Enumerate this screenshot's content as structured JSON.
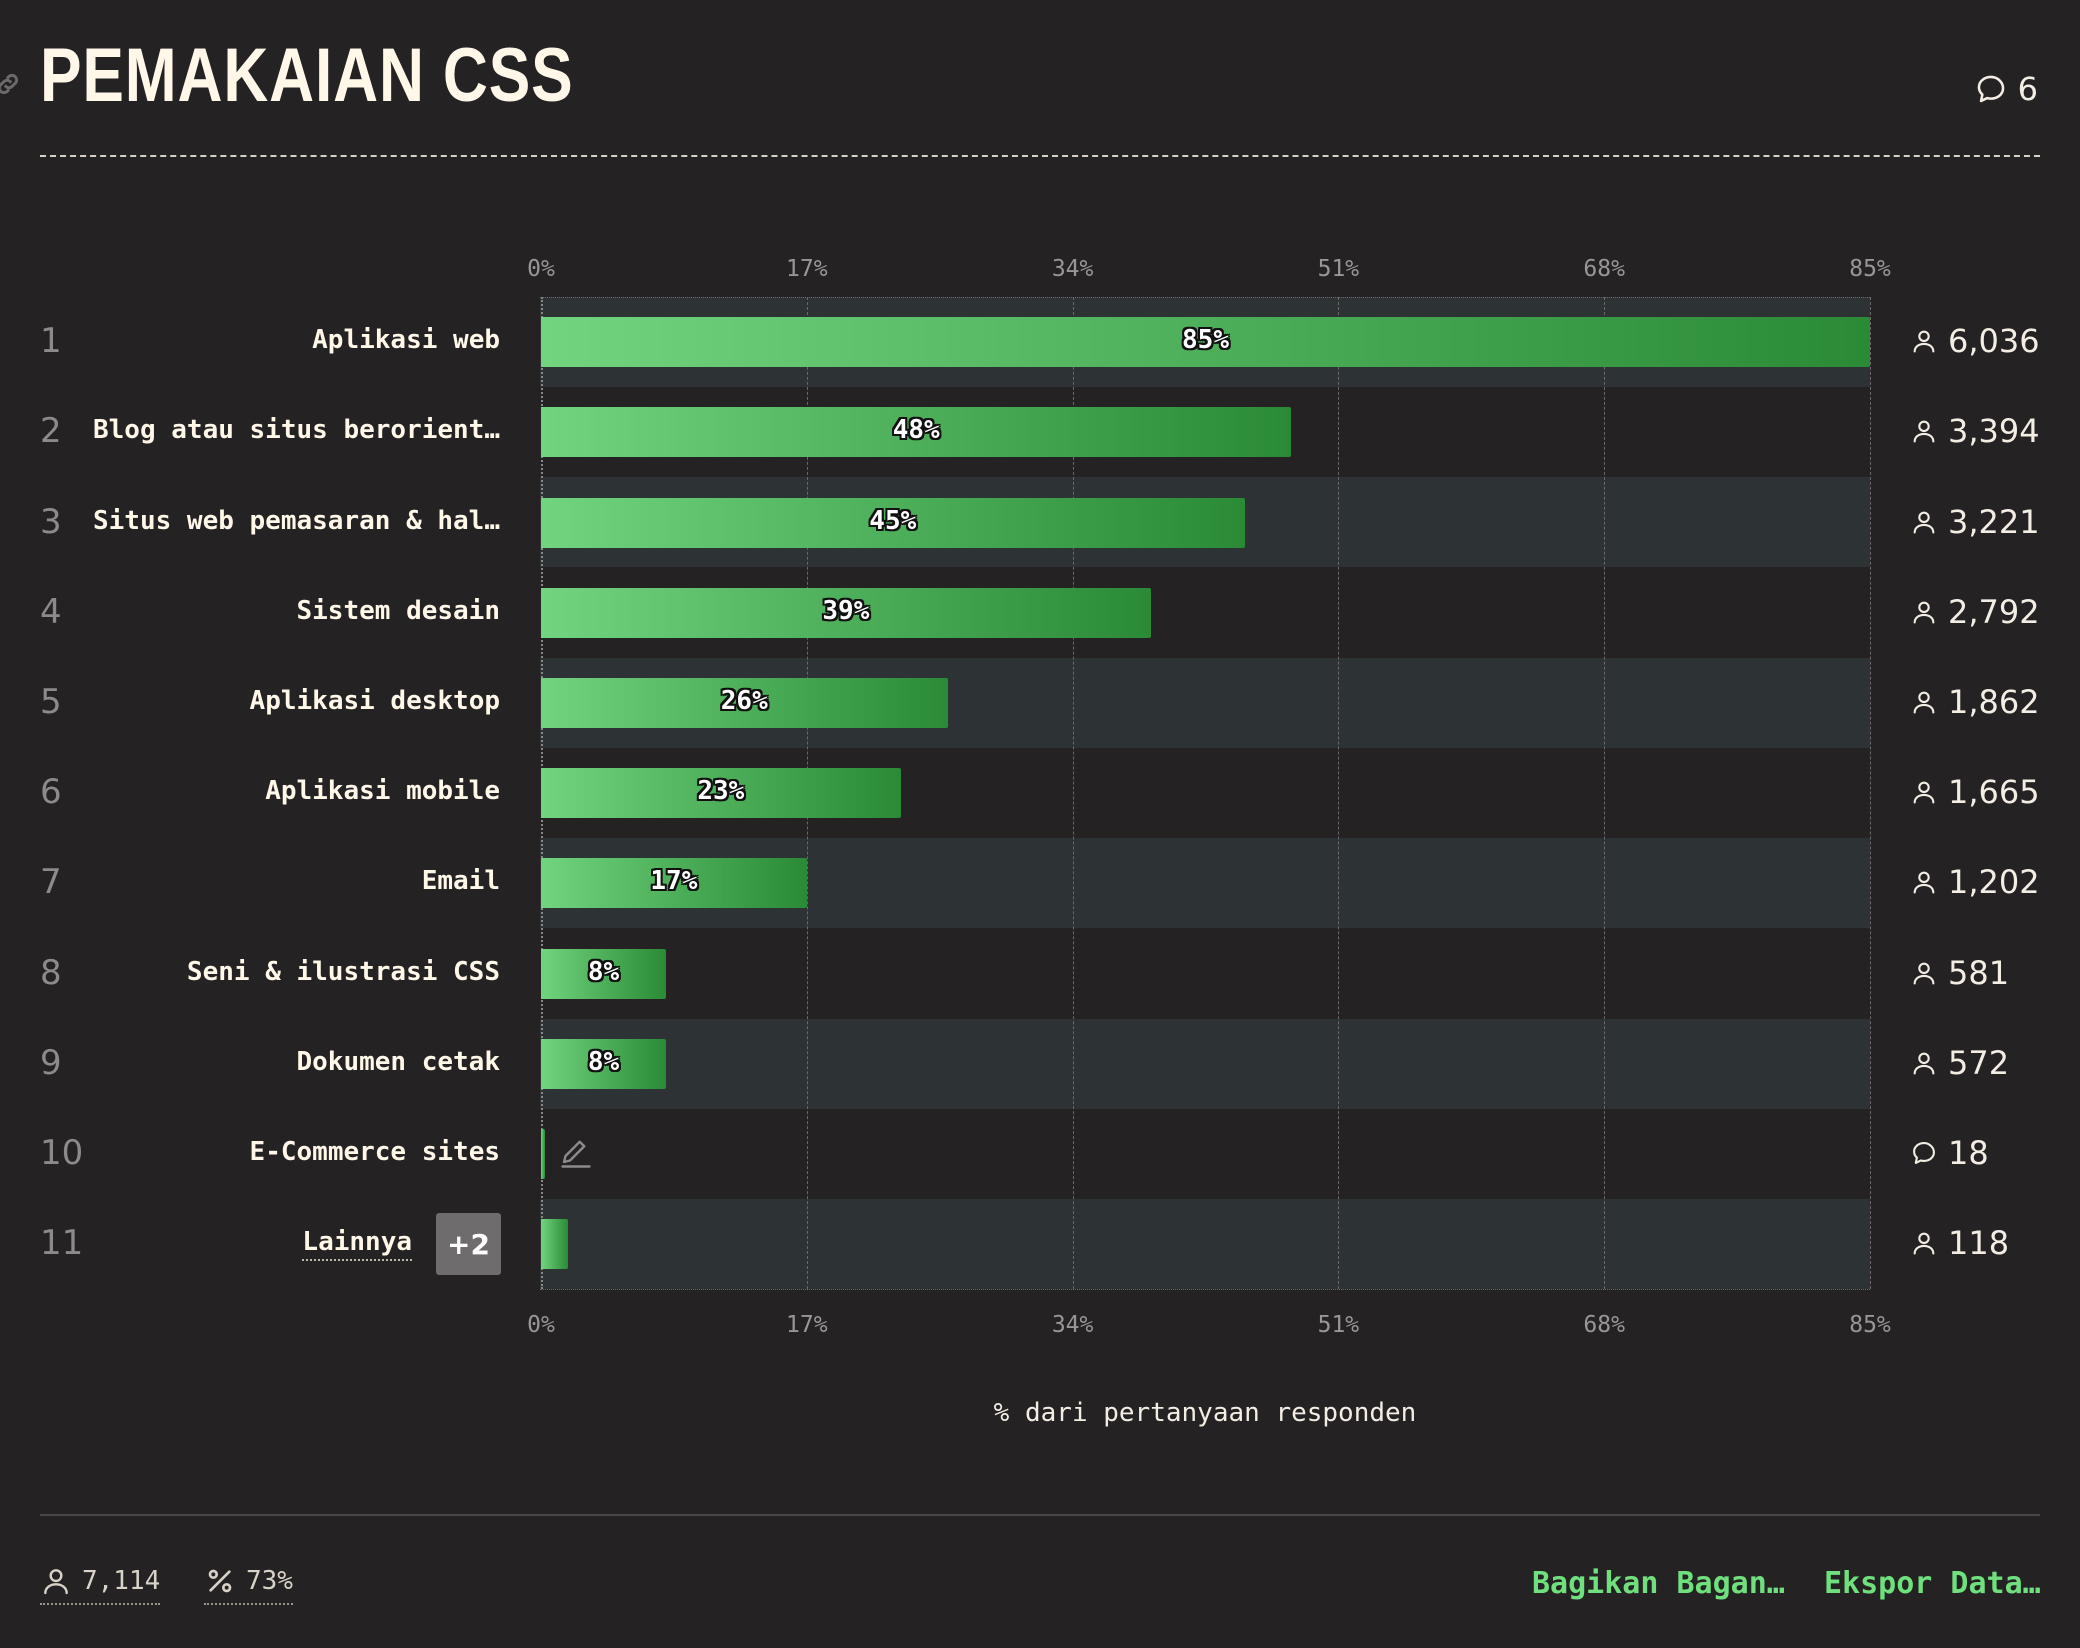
{
  "header": {
    "title": "PEMAKAIAN CSS",
    "comments": "6"
  },
  "chart_data": {
    "type": "bar",
    "orientation": "horizontal",
    "title": "PEMAKAIAN CSS",
    "xlabel": "% dari pertanyaan responden",
    "xlim": [
      0,
      85
    ],
    "ticks": [
      "0%",
      "17%",
      "34%",
      "51%",
      "68%",
      "85%"
    ],
    "categories": [
      "Aplikasi web",
      "Blog atau situs berorient…",
      "Situs web pemasaran & hal…",
      "Sistem desain",
      "Aplikasi desktop",
      "Aplikasi mobile",
      "Email",
      "Seni & ilustrasi CSS",
      "Dokumen cetak",
      "E-Commerce sites",
      "Lainnya"
    ],
    "values": [
      85,
      48,
      45,
      39,
      26,
      23,
      17,
      8,
      8,
      0.25,
      1.7
    ],
    "value_labels": [
      "85%",
      "48%",
      "45%",
      "39%",
      "26%",
      "23%",
      "17%",
      "8%",
      "8%",
      "",
      ""
    ],
    "ranks": [
      "1",
      "2",
      "3",
      "4",
      "5",
      "6",
      "7",
      "8",
      "9",
      "10",
      "11"
    ],
    "counts": [
      "6,036",
      "3,394",
      "3,221",
      "2,792",
      "1,862",
      "1,665",
      "1,202",
      "581",
      "572",
      "18",
      "118"
    ],
    "count_icons": [
      "user-icon",
      "user-icon",
      "user-icon",
      "user-icon",
      "user-icon",
      "user-icon",
      "user-icon",
      "user-icon",
      "user-icon",
      "comment-icon",
      "user-icon"
    ],
    "bar_color_start": "#72d47e",
    "bar_color_end": "#2a8a36"
  },
  "more_badge": "+2",
  "footer": {
    "respondents": "7,114",
    "percent": "73%",
    "share_label": "Bagikan Bagan…",
    "export_label": "Ekspor Data…"
  }
}
